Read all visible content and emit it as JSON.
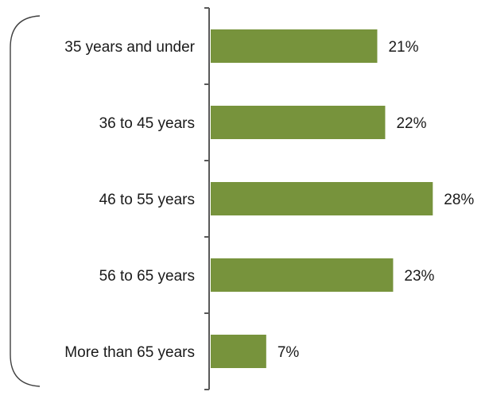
{
  "chart_data": {
    "type": "bar",
    "orientation": "horizontal",
    "categories": [
      "35 years and under",
      "36 to 45 years",
      "46 to 55 years",
      "56 to 65 years",
      "More than 65 years"
    ],
    "values": [
      21,
      22,
      28,
      23,
      7
    ],
    "value_labels": [
      "21%",
      "22%",
      "28%",
      "23%",
      "7%"
    ],
    "value_unit": "%",
    "xlim": [
      0,
      28
    ],
    "grid": false,
    "legend": "none",
    "title": "",
    "xlabel": "",
    "ylabel": "",
    "bar_color": "#77933c",
    "axis_color": "#595959",
    "bracket_color": "#404040"
  }
}
